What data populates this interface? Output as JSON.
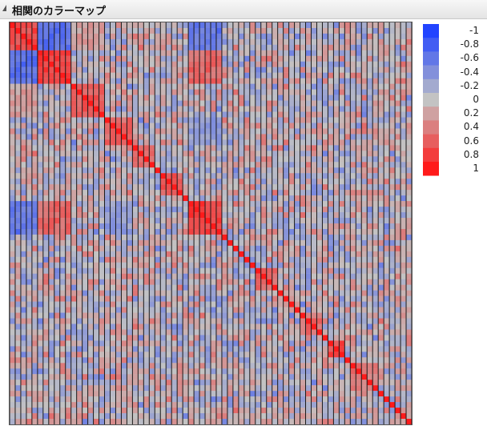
{
  "panel": {
    "title": "相関のカラーマップ"
  },
  "chart_data": {
    "type": "heatmap",
    "title": "相関のカラーマップ",
    "n_variables": 72,
    "value_range": [
      -1,
      1
    ],
    "diagonal_value": 1,
    "colors": {
      "negative": "#2244ff",
      "neutral": "#c3c3c3",
      "positive": "#ff1a1a",
      "cell_border": "#1a1a1a"
    },
    "legend": {
      "position": "right",
      "ticks": [
        "-1",
        "-0.8",
        "-0.6",
        "-0.4",
        "-0.2",
        "0",
        "0.2",
        "0.4",
        "0.6",
        "0.8",
        "1"
      ],
      "values": [
        -1,
        -0.8,
        -0.6,
        -0.4,
        -0.2,
        0,
        0.2,
        0.4,
        0.6,
        0.8,
        1
      ]
    },
    "blocks": [
      {
        "start": 0,
        "end": 5,
        "value": 0.7
      },
      {
        "start": 5,
        "end": 11,
        "value": 0.75
      },
      {
        "start": 11,
        "end": 17,
        "value": 0.6
      },
      {
        "start": 17,
        "end": 22,
        "value": 0.55
      },
      {
        "start": 22,
        "end": 26,
        "value": 0.55
      },
      {
        "start": 27,
        "end": 31,
        "value": 0.6
      },
      {
        "start": 32,
        "end": 38,
        "value": 0.8
      },
      {
        "start": 44,
        "end": 48,
        "value": 0.55
      },
      {
        "start": 52,
        "end": 56,
        "value": 0.5
      },
      {
        "start": 57,
        "end": 60,
        "value": 0.7
      },
      {
        "start": 61,
        "end": 66,
        "value": 0.45
      }
    ],
    "cross_blocks": [
      {
        "rows": [
          0,
          5
        ],
        "cols": [
          5,
          11
        ],
        "value": -0.65
      },
      {
        "rows": [
          0,
          5
        ],
        "cols": [
          32,
          38
        ],
        "value": -0.6
      },
      {
        "rows": [
          5,
          11
        ],
        "cols": [
          32,
          38
        ],
        "value": 0.55
      },
      {
        "rows": [
          0,
          5
        ],
        "cols": [
          11,
          17
        ],
        "value": 0.2
      },
      {
        "rows": [
          17,
          22
        ],
        "cols": [
          32,
          38
        ],
        "value": -0.3
      }
    ]
  }
}
